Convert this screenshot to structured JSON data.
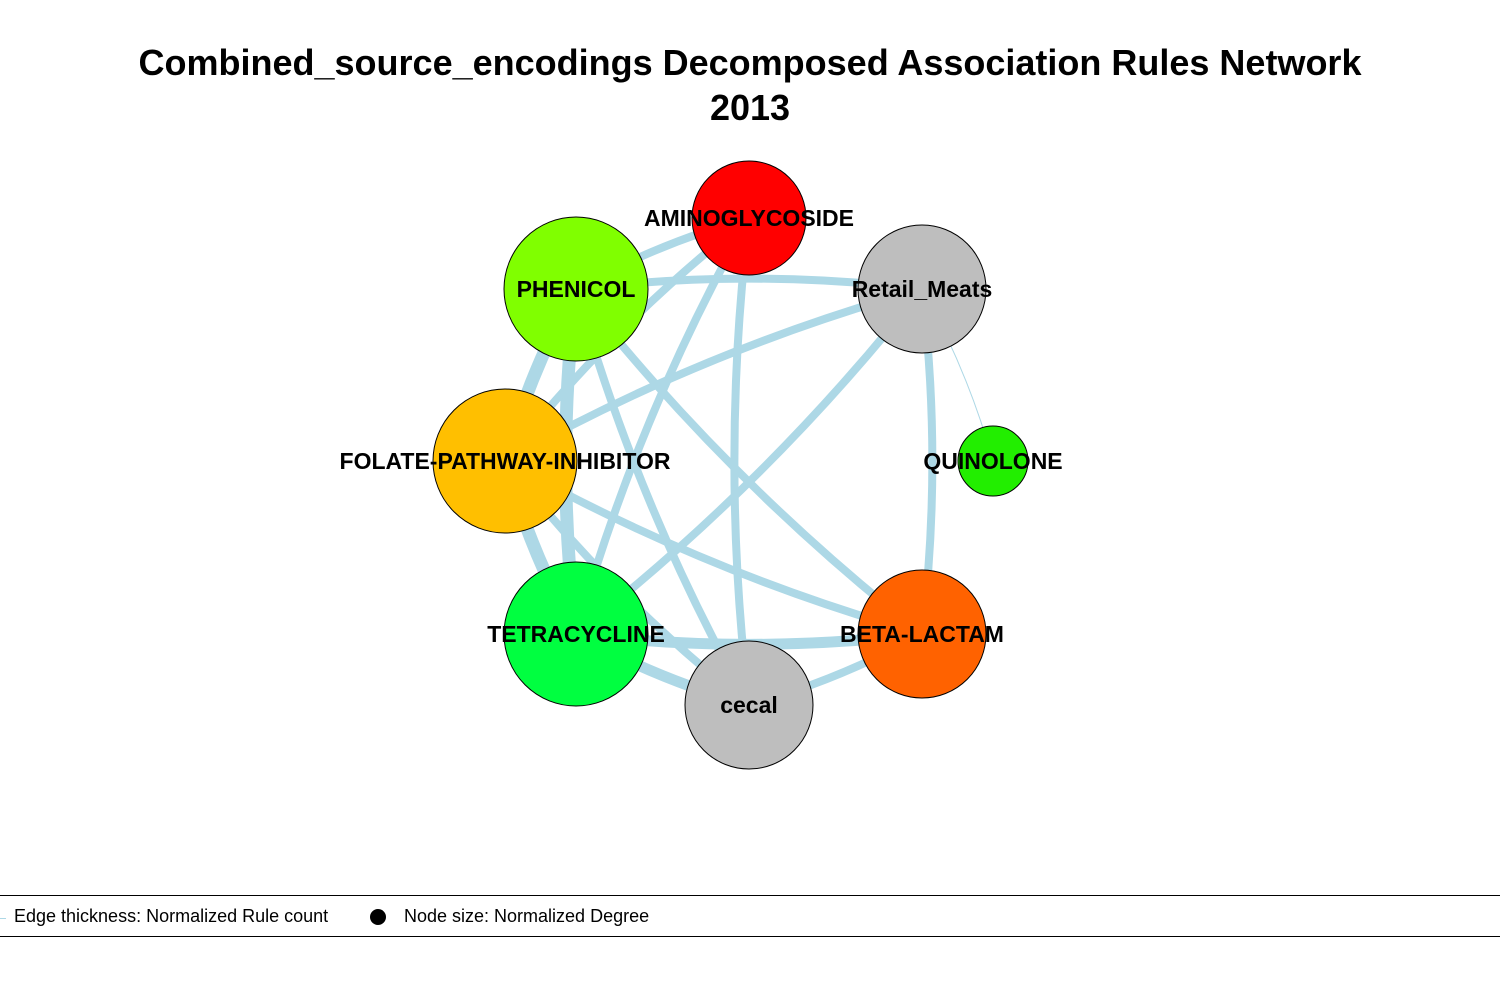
{
  "title": {
    "line1": "Combined_source_encodings Decomposed Association Rules Network",
    "line2": "2013"
  },
  "colors": {
    "edge": "#add8e6",
    "node_stroke": "#000000"
  },
  "nodes": [
    {
      "id": "aminoglycoside",
      "label": "AMINOGLYCOSIDE",
      "color": "#ff0000"
    },
    {
      "id": "retail_meats",
      "label": "Retail_Meats",
      "color": "#bebebe"
    },
    {
      "id": "quinolone",
      "label": "QUINOLONE",
      "color": "#22ee00"
    },
    {
      "id": "beta_lactam",
      "label": "BETA-LACTAM",
      "color": "#ff6200"
    },
    {
      "id": "cecal",
      "label": "cecal",
      "color": "#bebebe"
    },
    {
      "id": "tetracycline",
      "label": "TETRACYCLINE",
      "color": "#00ff40"
    },
    {
      "id": "folate",
      "label": "FOLATE-PATHWAY-INHIBITOR",
      "color": "#ffbf00"
    },
    {
      "id": "phenicol",
      "label": "PHENICOL",
      "color": "#80ff00"
    }
  ],
  "edges": [
    {
      "from": "phenicol",
      "to": "aminoglycoside"
    },
    {
      "from": "phenicol",
      "to": "retail_meats"
    },
    {
      "from": "phenicol",
      "to": "folate"
    },
    {
      "from": "phenicol",
      "to": "tetracycline"
    },
    {
      "from": "phenicol",
      "to": "cecal"
    },
    {
      "from": "phenicol",
      "to": "beta_lactam"
    },
    {
      "from": "aminoglycoside",
      "to": "folate"
    },
    {
      "from": "aminoglycoside",
      "to": "tetracycline"
    },
    {
      "from": "aminoglycoside",
      "to": "cecal"
    },
    {
      "from": "retail_meats",
      "to": "folate"
    },
    {
      "from": "retail_meats",
      "to": "tetracycline"
    },
    {
      "from": "retail_meats",
      "to": "beta_lactam"
    },
    {
      "from": "retail_meats",
      "to": "quinolone"
    },
    {
      "from": "folate",
      "to": "tetracycline"
    },
    {
      "from": "folate",
      "to": "cecal"
    },
    {
      "from": "folate",
      "to": "beta_lactam"
    },
    {
      "from": "tetracycline",
      "to": "cecal"
    },
    {
      "from": "tetracycline",
      "to": "beta_lactam"
    },
    {
      "from": "cecal",
      "to": "beta_lactam"
    }
  ],
  "legend": {
    "edge_label": "Edge thickness: Normalized Rule count",
    "node_label": "Node size: Normalized Degree"
  }
}
